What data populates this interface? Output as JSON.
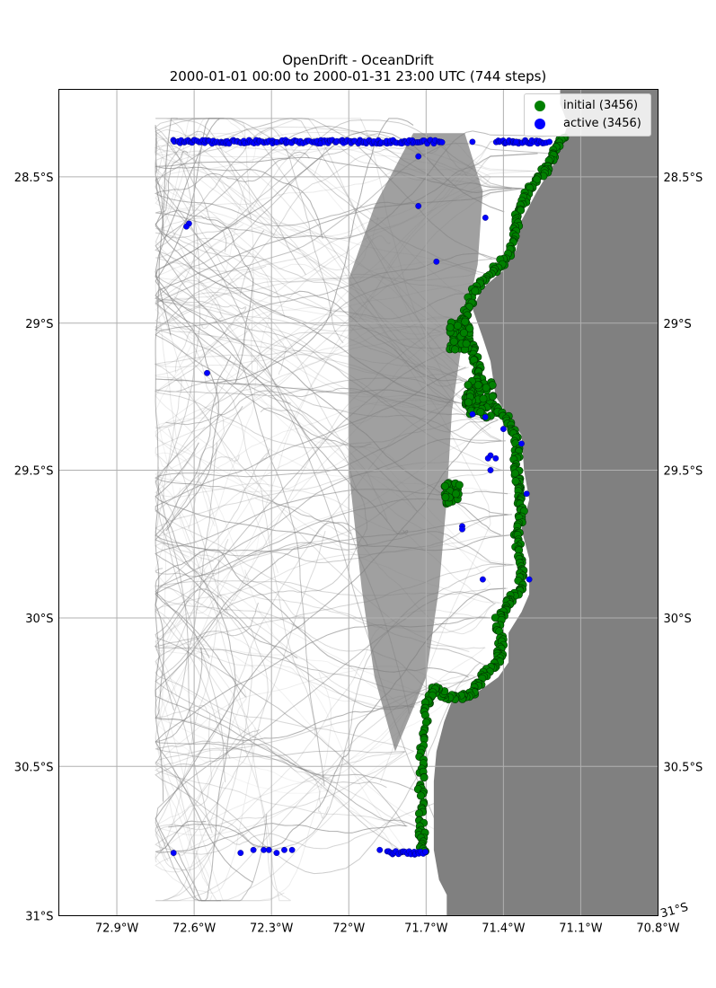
{
  "figure": {
    "title": "OpenDrift - OceanDrift",
    "subtitle": "2000-01-01 00:00 to 2000-01-31 23:00 UTC (744 steps)"
  },
  "legend": {
    "items": [
      {
        "label": "initial (3456)",
        "color": "#008000"
      },
      {
        "label": "active (3456)",
        "color": "#0000ff"
      }
    ]
  },
  "colors": {
    "land": "#808080",
    "trajectory": "#808080",
    "initial": "#008000",
    "active": "#0000ff",
    "grid": "#b0b0b0"
  },
  "chart_data": {
    "type": "map",
    "projection": "mercator",
    "xlim": [
      -73.125,
      -70.8
    ],
    "ylim": [
      -31.0,
      -28.2
    ],
    "x_ticks": [
      {
        "value": -72.9,
        "label": "72.9°W"
      },
      {
        "value": -72.6,
        "label": "72.6°W"
      },
      {
        "value": -72.3,
        "label": "72.3°W"
      },
      {
        "value": -72.0,
        "label": "72°W"
      },
      {
        "value": -71.7,
        "label": "71.7°W"
      },
      {
        "value": -71.4,
        "label": "71.4°W"
      },
      {
        "value": -71.1,
        "label": "71.1°W"
      },
      {
        "value": -70.8,
        "label": "70.8°W"
      }
    ],
    "y_ticks": [
      {
        "value": -28.5,
        "label": "28.5°S"
      },
      {
        "value": -29.0,
        "label": "29°S"
      },
      {
        "value": -29.5,
        "label": "29.5°S"
      },
      {
        "value": -30.0,
        "label": "30°S"
      },
      {
        "value": -30.5,
        "label": "30.5°S"
      },
      {
        "value": -31.0,
        "label": "31°S"
      }
    ],
    "grid": true,
    "legend_position": "top-right",
    "coastline": [
      [
        -71.18,
        -28.2
      ],
      [
        -71.18,
        -28.25
      ],
      [
        -71.15,
        -28.32
      ],
      [
        -71.2,
        -28.45
      ],
      [
        -71.27,
        -28.55
      ],
      [
        -71.33,
        -28.65
      ],
      [
        -71.35,
        -28.75
      ],
      [
        -71.4,
        -28.82
      ],
      [
        -71.48,
        -28.88
      ],
      [
        -71.52,
        -28.95
      ],
      [
        -71.48,
        -29.05
      ],
      [
        -71.45,
        -29.13
      ],
      [
        -71.43,
        -29.25
      ],
      [
        -71.38,
        -29.32
      ],
      [
        -71.33,
        -29.38
      ],
      [
        -71.32,
        -29.5
      ],
      [
        -71.3,
        -29.6
      ],
      [
        -71.33,
        -29.7
      ],
      [
        -71.3,
        -29.8
      ],
      [
        -71.3,
        -29.92
      ],
      [
        -71.33,
        -29.98
      ],
      [
        -71.38,
        -30.05
      ],
      [
        -71.38,
        -30.15
      ],
      [
        -71.42,
        -30.2
      ],
      [
        -71.5,
        -30.25
      ],
      [
        -71.6,
        -30.28
      ],
      [
        -71.63,
        -30.35
      ],
      [
        -71.66,
        -30.45
      ],
      [
        -71.67,
        -30.55
      ],
      [
        -71.67,
        -30.65
      ],
      [
        -71.67,
        -30.78
      ],
      [
        -71.65,
        -30.88
      ],
      [
        -71.62,
        -30.93
      ],
      [
        -71.62,
        -31.0
      ]
    ],
    "series": [
      {
        "name": "initial (3456)",
        "path": [
          [
            -71.17,
            -28.36
          ],
          [
            -71.2,
            -28.42
          ],
          [
            -71.24,
            -28.48
          ],
          [
            -71.3,
            -28.54
          ],
          [
            -71.34,
            -28.62
          ],
          [
            -71.36,
            -28.7
          ],
          [
            -71.39,
            -28.78
          ],
          [
            -71.45,
            -28.83
          ],
          [
            -71.52,
            -28.9
          ],
          [
            -71.55,
            -28.98
          ],
          [
            -71.58,
            -29.03
          ],
          [
            -71.52,
            -29.08
          ],
          [
            -71.5,
            -29.15
          ],
          [
            -71.49,
            -29.2
          ],
          [
            -71.55,
            -29.27
          ],
          [
            -71.45,
            -29.28
          ],
          [
            -71.38,
            -29.33
          ],
          [
            -71.35,
            -29.4
          ],
          [
            -71.35,
            -29.5
          ],
          [
            -71.34,
            -29.58
          ],
          [
            -71.33,
            -29.65
          ],
          [
            -71.35,
            -29.72
          ],
          [
            -71.33,
            -29.82
          ],
          [
            -71.33,
            -29.9
          ],
          [
            -71.38,
            -29.95
          ],
          [
            -71.42,
            -30.0
          ],
          [
            -71.41,
            -30.1
          ],
          [
            -71.42,
            -30.15
          ],
          [
            -71.48,
            -30.2
          ],
          [
            -71.52,
            -30.26
          ],
          [
            -71.6,
            -30.27
          ],
          [
            -71.67,
            -30.24
          ],
          [
            -71.7,
            -30.3
          ],
          [
            -71.72,
            -30.45
          ],
          [
            -71.72,
            -30.58
          ],
          [
            -71.72,
            -30.7
          ],
          [
            -71.71,
            -30.8
          ]
        ],
        "clusters": [
          {
            "lon": -71.57,
            "lat": -29.04,
            "spread": 0.04
          },
          {
            "lon": -71.49,
            "lat": -29.26,
            "spread": 0.05
          },
          {
            "lon": -71.6,
            "lat": -29.58,
            "spread": 0.03
          }
        ]
      },
      {
        "name": "active (3456)",
        "bands": [
          {
            "lon_start": -72.68,
            "lon_end": -71.63,
            "lat": -28.38
          },
          {
            "lon_start": -71.43,
            "lon_end": -71.22,
            "lat": -28.38
          },
          {
            "lon_start": -71.85,
            "lon_end": -71.7,
            "lat": -30.79
          }
        ],
        "points": [
          [
            -71.73,
            -28.43
          ],
          [
            -71.73,
            -28.6
          ],
          [
            -71.47,
            -28.64
          ],
          [
            -72.62,
            -28.66
          ],
          [
            -72.63,
            -28.67
          ],
          [
            -71.66,
            -28.79
          ],
          [
            -72.55,
            -29.17
          ],
          [
            -71.52,
            -29.31
          ],
          [
            -71.47,
            -29.32
          ],
          [
            -71.4,
            -29.36
          ],
          [
            -71.45,
            -29.45
          ],
          [
            -71.46,
            -29.46
          ],
          [
            -71.43,
            -29.46
          ],
          [
            -71.45,
            -29.5
          ],
          [
            -71.33,
            -29.41
          ],
          [
            -71.31,
            -29.58
          ],
          [
            -71.56,
            -29.69
          ],
          [
            -71.56,
            -29.7
          ],
          [
            -71.48,
            -29.87
          ],
          [
            -71.3,
            -29.87
          ],
          [
            -72.68,
            -30.79
          ],
          [
            -72.42,
            -30.79
          ],
          [
            -72.37,
            -30.78
          ],
          [
            -72.33,
            -30.78
          ],
          [
            -72.31,
            -30.78
          ],
          [
            -72.28,
            -30.79
          ],
          [
            -72.25,
            -30.78
          ],
          [
            -72.22,
            -30.78
          ],
          [
            -71.88,
            -30.78
          ],
          [
            -71.52,
            -28.38
          ],
          [
            -71.35,
            -28.38
          ]
        ]
      }
    ],
    "trajectories": {
      "color": "#808080",
      "dense_region": [
        [
          -71.75,
          -28.35
        ],
        [
          -71.55,
          -28.35
        ],
        [
          -71.48,
          -28.55
        ],
        [
          -71.5,
          -28.8
        ],
        [
          -71.55,
          -29.0
        ],
        [
          -71.6,
          -29.3
        ],
        [
          -71.62,
          -29.6
        ],
        [
          -71.65,
          -29.9
        ],
        [
          -71.7,
          -30.2
        ],
        [
          -71.82,
          -30.45
        ],
        [
          -71.9,
          -30.2
        ],
        [
          -71.95,
          -29.9
        ],
        [
          -72.0,
          -29.5
        ],
        [
          -72.0,
          -29.1
        ],
        [
          -72.0,
          -28.85
        ],
        [
          -71.9,
          -28.6
        ]
      ]
    }
  }
}
